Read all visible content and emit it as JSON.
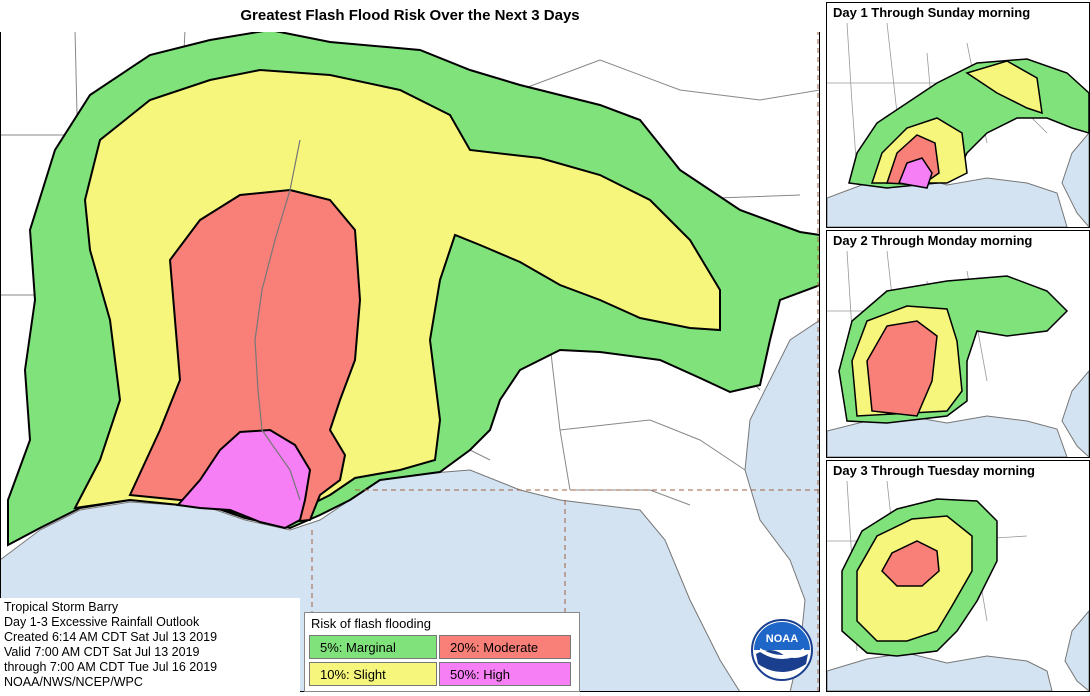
{
  "title": "Greatest Flash Flood Risk Over the Next 3 Days",
  "panels": [
    {
      "title": "Day 1 Through Sunday morning"
    },
    {
      "title": "Day 2 Through Monday morning"
    },
    {
      "title": "Day 3 Through Tuesday morning"
    }
  ],
  "info": {
    "line1": "Tropical Storm Barry",
    "line2": "Day 1-3 Excessive Rainfall Outlook",
    "line3": "Created 6:14 AM CDT Sat Jul 13 2019",
    "line4": "Valid 7:00 AM CDT Sat Jul 13 2019",
    "line5": "through 7:00 AM CDT Tue Jul 16 2019",
    "line6": "NOAA/NWS/NCEP/WPC"
  },
  "legend": {
    "title": "Risk of flash flooding",
    "items": [
      {
        "label": "5%: Marginal",
        "color": "#80e27b"
      },
      {
        "label": "20%: Moderate",
        "color": "#f88079"
      },
      {
        "label": "10%: Slight",
        "color": "#f6f67c"
      },
      {
        "label": "50%: High",
        "color": "#f77ff5"
      }
    ]
  },
  "logo": {
    "text": "NOAA"
  },
  "colors": {
    "marginal": "#80e27b",
    "slight": "#f6f67c",
    "moderate": "#f88079",
    "high": "#f77ff5",
    "water": "#d3e3f1",
    "land": "#ffffff",
    "border": "#8a8a8a"
  }
}
